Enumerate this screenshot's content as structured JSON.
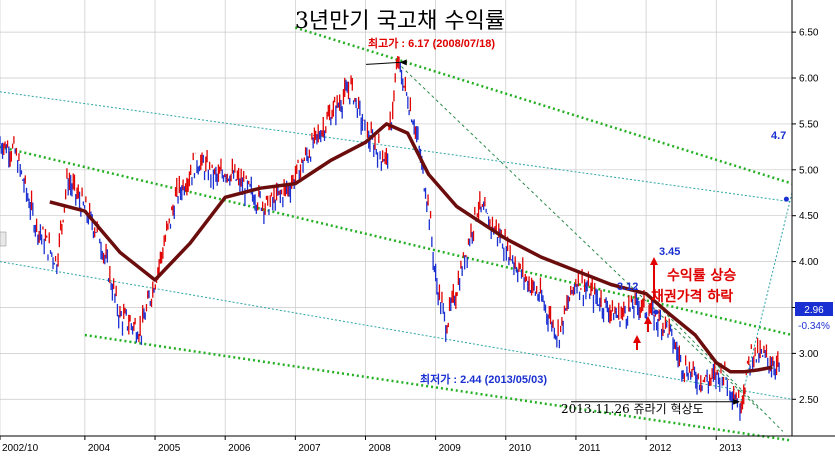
{
  "chart_data": {
    "type": "line",
    "title": "3년만기 국고채 수익률",
    "x_tick_labels": [
      "2002/10",
      "2004",
      "2005",
      "2006",
      "2007",
      "2008",
      "2009",
      "2010",
      "2011",
      "2012",
      "2013"
    ],
    "y_tick_labels": [
      "2.50",
      "3.00",
      "3.50",
      "4.00",
      "4.50",
      "5.00",
      "5.50",
      "6.00",
      "6.50"
    ],
    "ylim": [
      2.1,
      6.85
    ],
    "grid": true,
    "colors": {
      "up_bar": "#e00000",
      "down_bar": "#1a2fd1",
      "moving_average": "#6b0d0d",
      "channel": "#22b022",
      "channel_light": "#2aa5a5",
      "projection": "#2a8a4a",
      "grid": "#c8c8c8"
    },
    "series": [
      {
        "x": [
          2002.79,
          2003.0,
          2003.3,
          2003.6,
          2003.75,
          2003.9,
          2004.2,
          2004.5,
          2004.8,
          2005.0,
          2005.3,
          2005.6,
          2005.9,
          2006.0,
          2006.3,
          2006.6,
          2006.9,
          2007.2,
          2007.5,
          2007.8,
          2008.0,
          2008.3,
          2008.46,
          2008.7,
          2008.9,
          2009.0,
          2009.15,
          2009.3,
          2009.6,
          2009.9,
          2010.2,
          2010.5,
          2010.75,
          2011.0,
          2011.3,
          2011.6,
          2011.9,
          2012.1,
          2012.3,
          2012.5,
          2012.7,
          2012.9,
          2013.1,
          2013.34,
          2013.5,
          2013.7,
          2013.9
        ],
        "values": [
          5.3,
          5.2,
          4.4,
          4.0,
          4.9,
          4.7,
          4.3,
          3.4,
          3.25,
          3.8,
          4.7,
          5.1,
          4.9,
          5.0,
          4.8,
          4.6,
          4.8,
          5.2,
          5.6,
          5.9,
          5.4,
          5.1,
          6.17,
          5.5,
          4.6,
          3.8,
          3.3,
          3.7,
          4.6,
          4.3,
          3.9,
          3.6,
          3.2,
          3.8,
          3.6,
          3.4,
          3.55,
          3.4,
          3.3,
          2.9,
          2.75,
          2.7,
          2.8,
          2.44,
          3.0,
          2.95,
          2.85
        ]
      },
      {
        "x": [
          2003.5,
          2004.0,
          2004.5,
          2005.0,
          2005.5,
          2006.0,
          2006.5,
          2007.0,
          2007.5,
          2008.0,
          2008.3,
          2008.6,
          2008.9,
          2009.3,
          2009.7,
          2010.0,
          2010.5,
          2011.0,
          2011.5,
          2012.0,
          2012.3,
          2012.7,
          2013.0,
          2013.2,
          2013.4,
          2013.6,
          2013.8
        ],
        "values": [
          4.65,
          4.55,
          4.1,
          3.8,
          4.2,
          4.7,
          4.8,
          4.85,
          5.1,
          5.3,
          5.5,
          5.4,
          4.95,
          4.6,
          4.4,
          4.25,
          4.05,
          3.9,
          3.75,
          3.65,
          3.45,
          3.2,
          2.9,
          2.8,
          2.8,
          2.82,
          2.85
        ]
      }
    ],
    "annotations": {
      "high_label": "최고가 : 6.17 (2008/07/18)",
      "low_label": "최저가 : 2.44 (2013/05/03)",
      "target_47": "4.7",
      "target_345": "3.45",
      "level_312": "3.12",
      "note_rate_up": "수익률 상승",
      "note_price_down": "채권가격 하락",
      "event_note": "2013.11.26 쥬라기 혁상도",
      "last_price": "2.96",
      "last_change": "-0.34%"
    }
  }
}
